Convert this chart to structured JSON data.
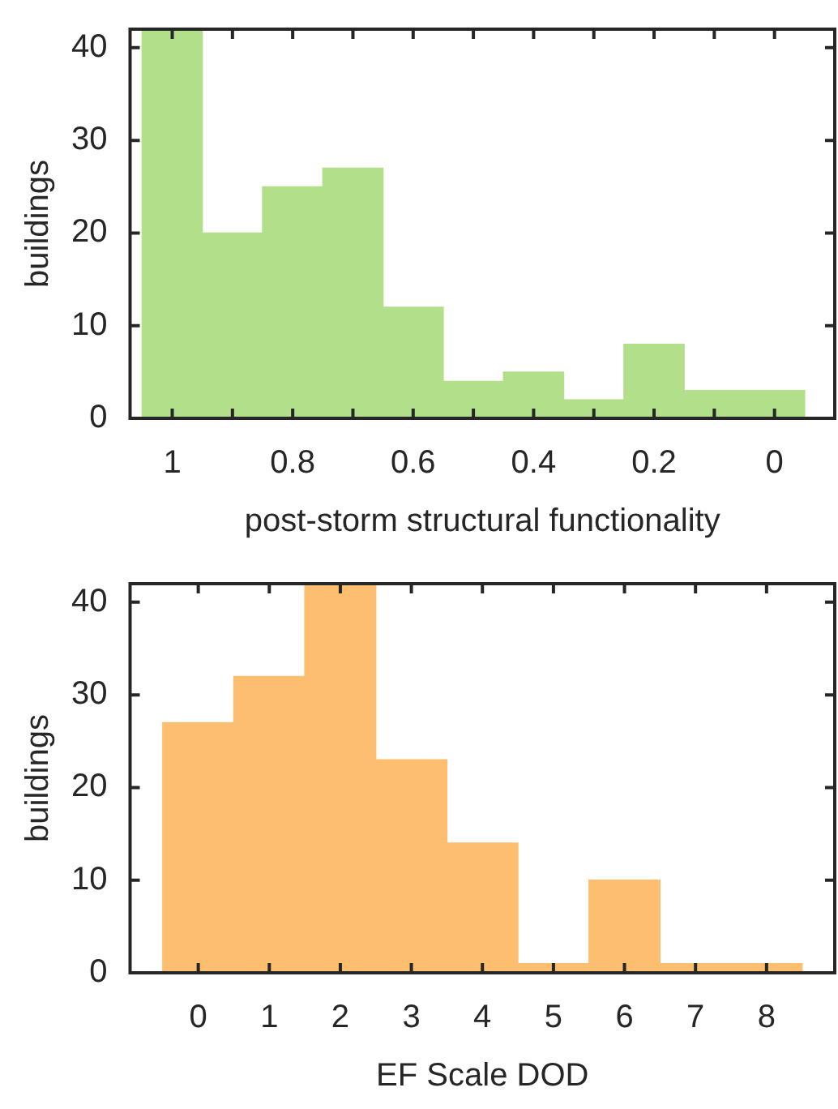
{
  "chart_data": [
    {
      "type": "histogram",
      "xlabel": "post-storm structural functionality",
      "ylabel": "buildings",
      "color": "#b2df8a",
      "bins": [
        1.05,
        0.95,
        0.85,
        0.75,
        0.65,
        0.55,
        0.45,
        0.35,
        0.25,
        0.15,
        0.05,
        -0.05
      ],
      "values": [
        42,
        20,
        25,
        27,
        12,
        4,
        5,
        2,
        8,
        3,
        3
      ],
      "xlim": [
        1.07,
        -0.1
      ],
      "xticks": [
        1,
        {
          "value": 0.9,
          "label": null
        },
        0.8,
        {
          "value": 0.7,
          "label": null
        },
        0.6,
        {
          "value": 0.5,
          "label": null
        },
        0.4,
        {
          "value": 0.3,
          "label": null
        },
        0.2,
        {
          "value": 0.1,
          "label": null
        },
        0
      ],
      "ylim": [
        0,
        42
      ],
      "yticks": [
        0,
        10,
        20,
        30,
        40
      ]
    },
    {
      "type": "histogram",
      "xlabel": "EF Scale DOD",
      "ylabel": "buildings",
      "color": "#fdbf6f",
      "bins": [
        -0.5,
        0.5,
        1.5,
        2.5,
        3.5,
        4.5,
        5.5,
        6.5,
        7.5,
        8.5
      ],
      "values": [
        27,
        32,
        42,
        23,
        14,
        1,
        10,
        1,
        1
      ],
      "xlim": [
        -0.96,
        8.96
      ],
      "xticks": [
        0,
        1,
        2,
        3,
        4,
        5,
        6,
        7,
        8
      ],
      "ylim": [
        0,
        42
      ],
      "yticks": [
        0,
        10,
        20,
        30,
        40
      ]
    }
  ]
}
